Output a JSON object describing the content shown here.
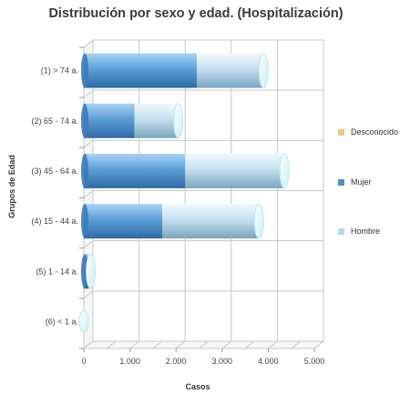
{
  "chart_data": {
    "type": "bar",
    "orientation": "horizontal",
    "stacked": true,
    "title": "Distribución por sexo y edad. (Hospitalización)",
    "xlabel": "Casos",
    "ylabel": "Grupos de Edad",
    "categories": [
      "(1) > 74 a.",
      "(2) 65 - 74 a.",
      "(3) 45 - 64 a.",
      "(4) 15 - 44 a.",
      "(5) 1 - 14 a.",
      "(6) < 1 a."
    ],
    "series": [
      {
        "name": "Mujer",
        "values": [
          2450,
          1100,
          2200,
          1700,
          100,
          0
        ],
        "color": "#4f8fc9"
      },
      {
        "name": "Hombre",
        "values": [
          1450,
          950,
          2150,
          2100,
          50,
          0
        ],
        "color": "#b9d9ee"
      },
      {
        "name": "Desconocido",
        "values": [
          0,
          0,
          0,
          0,
          0,
          0
        ],
        "color": "#f2c879"
      }
    ],
    "xlim": [
      0,
      5000
    ],
    "xticks": [
      0,
      1000,
      2000,
      3000,
      4000,
      5000
    ],
    "xtick_labels": [
      "0",
      "1.000",
      "2.000",
      "3.000",
      "4.000",
      "5.000"
    ],
    "grid": true,
    "legend_position": "right",
    "legend_order": [
      "Desconocido",
      "Mujer",
      "Hombre"
    ]
  }
}
